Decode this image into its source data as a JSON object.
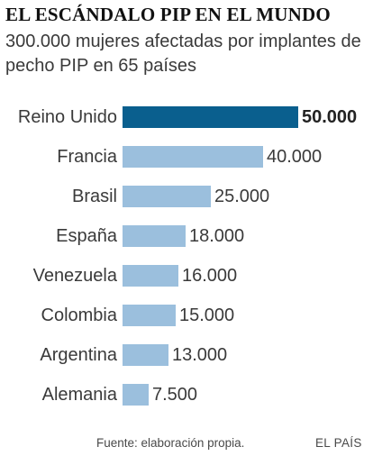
{
  "header": {
    "title": "EL ESCÁNDALO PIP EN EL MUNDO",
    "subtitle": "300.000 mujeres afectadas por implantes de pecho PIP en 65 países"
  },
  "footer": {
    "source": "Fuente: elaboración propia.",
    "brand": "EL PAÍS"
  },
  "colors": {
    "highlight": "#0a5f8e",
    "bar": "#9bbfdd"
  },
  "chart_data": {
    "type": "bar",
    "orientation": "horizontal",
    "title": "EL ESCÁNDALO PIP EN EL MUNDO",
    "subtitle": "300.000 mujeres afectadas por implantes de pecho PIP en 65 países",
    "categories": [
      "Reino Unido",
      "Francia",
      "Brasil",
      "España",
      "Venezuela",
      "Colombia",
      "Argentina",
      "Alemania"
    ],
    "values": [
      50000,
      40000,
      25000,
      18000,
      16000,
      15000,
      13000,
      7500
    ],
    "value_labels": [
      "50.000",
      "40.000",
      "25.000",
      "18.000",
      "16.000",
      "15.000",
      "13.000",
      "7.500"
    ],
    "highlighted": [
      true,
      false,
      false,
      false,
      false,
      false,
      false,
      false
    ],
    "xlim": [
      0,
      50000
    ],
    "grid": false,
    "legend": "none"
  }
}
